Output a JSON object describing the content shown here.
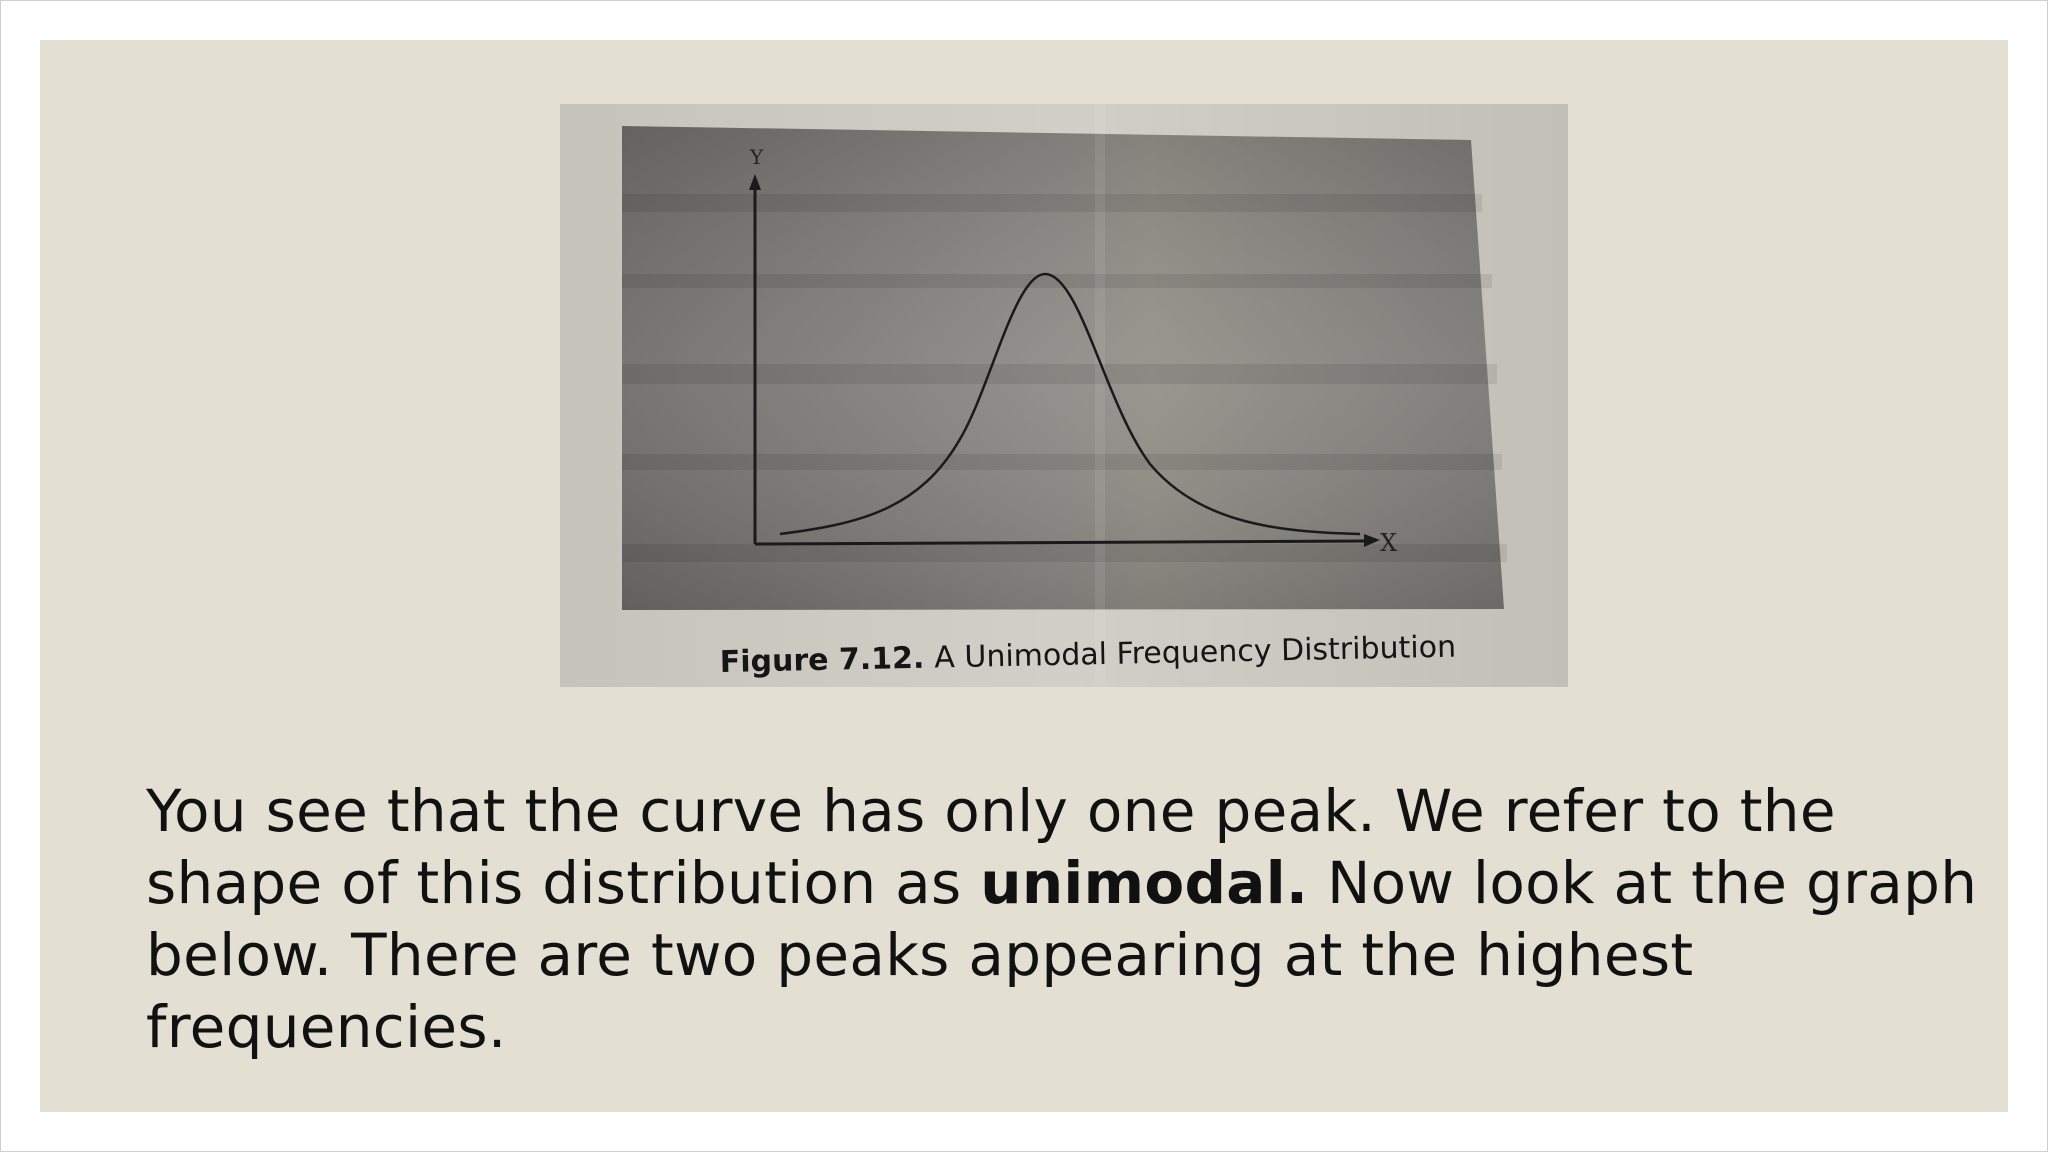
{
  "figure": {
    "y_axis_label": "Y",
    "x_axis_label": "X",
    "caption_bold": "Figure 7.12.",
    "caption_text": "A Unimodal Frequency Distribution"
  },
  "body": {
    "line1": "You see that the curve has only one peak. We refer to the",
    "line2_before": "shape of this distribution as ",
    "line2_bold": "unimodal.",
    "line2_after": " Now look at the graph",
    "line3": "below. There are two peaks appearing at the highest",
    "line4": "frequencies."
  },
  "colors": {
    "slide_background": "#e3dfd2",
    "photo_paper": "#c9c6bf",
    "chart_panel": "#7d7b77",
    "curve": "#1a1a1a"
  }
}
